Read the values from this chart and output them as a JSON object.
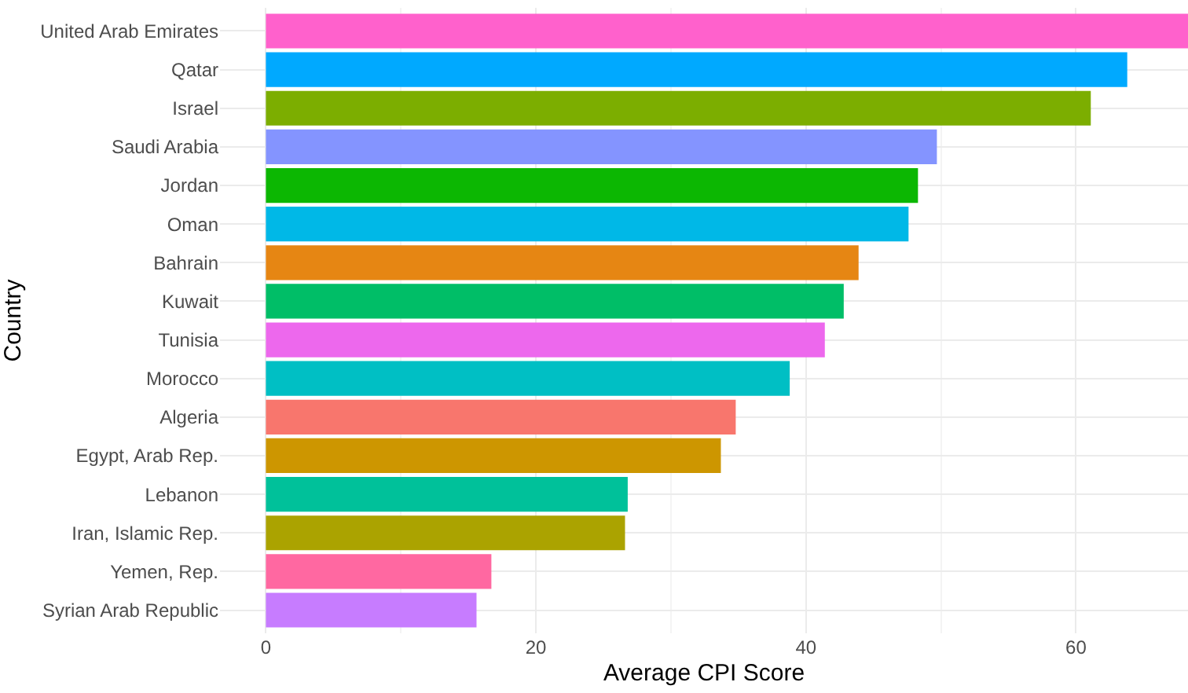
{
  "chart_data": {
    "type": "bar",
    "orientation": "horizontal",
    "xlabel": "Average CPI Score",
    "ylabel": "Country",
    "categories": [
      "United Arab Emirates",
      "Qatar",
      "Israel",
      "Saudi Arabia",
      "Jordan",
      "Oman",
      "Bahrain",
      "Kuwait",
      "Tunisia",
      "Morocco",
      "Algeria",
      "Egypt, Arab Rep.",
      "Lebanon",
      "Iran, Islamic Rep.",
      "Yemen, Rep.",
      "Syrian Arab Republic"
    ],
    "values": [
      68.3,
      63.8,
      61.1,
      49.7,
      48.3,
      47.6,
      43.9,
      42.8,
      41.4,
      38.8,
      34.8,
      33.7,
      26.8,
      26.6,
      16.7,
      15.6
    ],
    "colors": [
      "#ff61cc",
      "#00a9ff",
      "#7cae00",
      "#8494ff",
      "#0cb702",
      "#00b8e7",
      "#e68613",
      "#00be67",
      "#ed68ed",
      "#00bfc4",
      "#f8766d",
      "#cd9600",
      "#00c19a",
      "#aba300",
      "#ff68a1",
      "#c77cff"
    ],
    "xlim": [
      -3.4,
      68.3
    ],
    "xticks": [
      0,
      20,
      40,
      60
    ],
    "grid": true,
    "legend": false
  }
}
